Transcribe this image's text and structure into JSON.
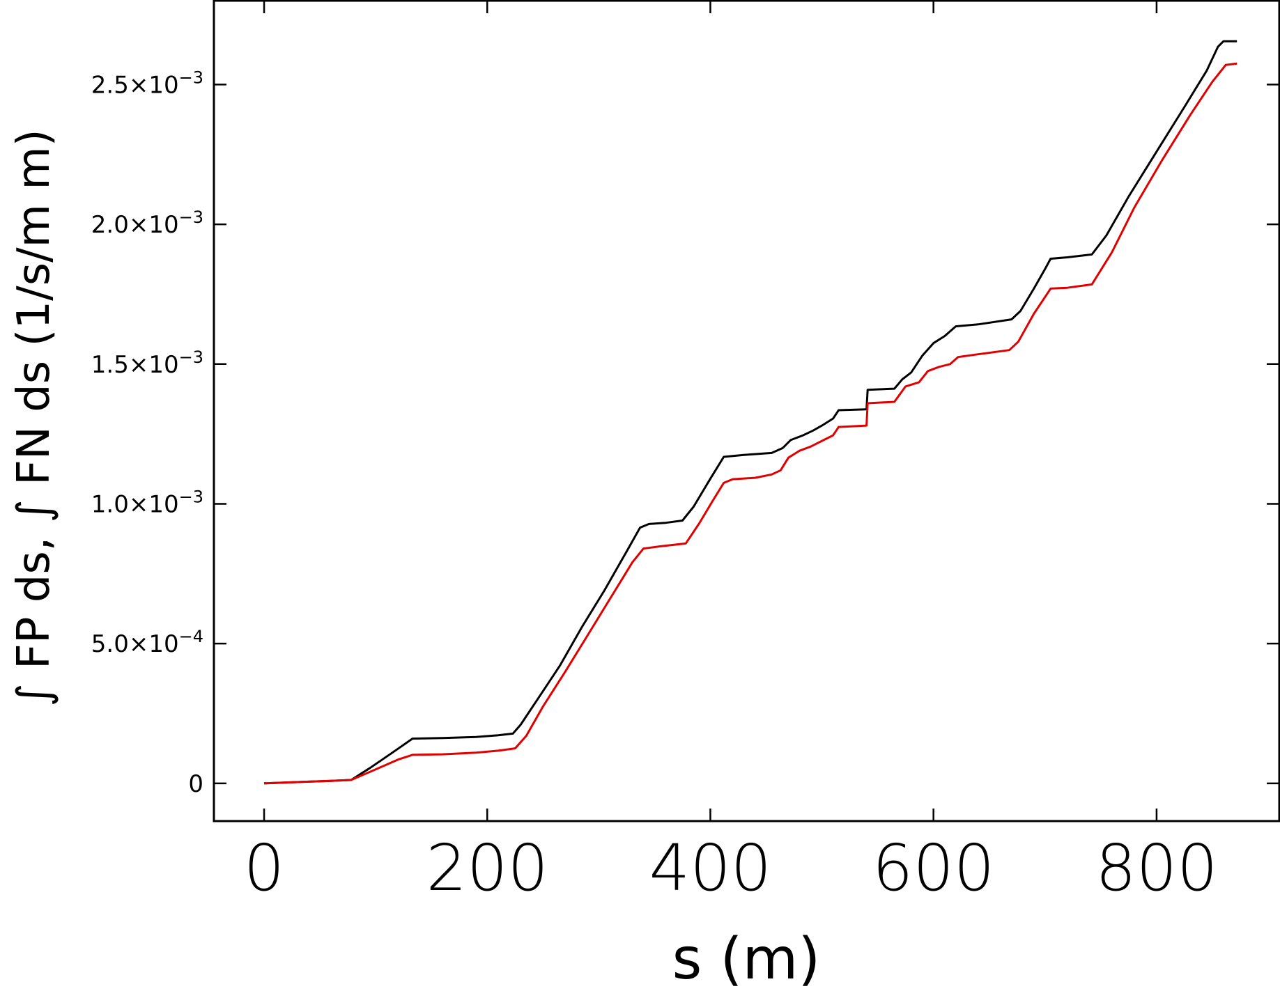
{
  "chart_data": {
    "type": "line",
    "xlabel": "s (m)",
    "ylabel": "∫ FP ds, ∫ FN ds (1/s/m m)",
    "xlim": [
      -45,
      910
    ],
    "ylim": [
      -0.000135,
      0.0028
    ],
    "x_ticks": [
      {
        "value": 0,
        "label": "0"
      },
      {
        "value": 200,
        "label": "200"
      },
      {
        "value": 400,
        "label": "400"
      },
      {
        "value": 600,
        "label": "600"
      },
      {
        "value": 800,
        "label": "800"
      }
    ],
    "y_ticks": [
      {
        "value": 0,
        "mantissa": "0",
        "exponent": ""
      },
      {
        "value": 0.0005,
        "mantissa": "5.0",
        "exponent": "−4"
      },
      {
        "value": 0.001,
        "mantissa": "1.0",
        "exponent": "−3"
      },
      {
        "value": 0.0015,
        "mantissa": "1.5",
        "exponent": "−3"
      },
      {
        "value": 0.002,
        "mantissa": "2.0",
        "exponent": "−3"
      },
      {
        "value": 0.0025,
        "mantissa": "2.5",
        "exponent": "−3"
      }
    ],
    "grid": false,
    "series": [
      {
        "color": "#000000",
        "points": [
          [
            0,
            0.0
          ],
          [
            20,
            3e-06
          ],
          [
            40,
            6e-06
          ],
          [
            60,
            9e-06
          ],
          [
            78,
            1.2e-05
          ],
          [
            95,
            5.5e-05
          ],
          [
            115,
            0.00011
          ],
          [
            133,
            0.00016
          ],
          [
            160,
            0.000162
          ],
          [
            190,
            0.000166
          ],
          [
            210,
            0.000172
          ],
          [
            223,
            0.000178
          ],
          [
            230,
            0.00021
          ],
          [
            245,
            0.0003
          ],
          [
            265,
            0.00042
          ],
          [
            285,
            0.00056
          ],
          [
            305,
            0.00069
          ],
          [
            325,
            0.00083
          ],
          [
            337,
            0.000915
          ],
          [
            345,
            0.000928
          ],
          [
            360,
            0.000932
          ],
          [
            375,
            0.00094
          ],
          [
            385,
            0.00099
          ],
          [
            400,
            0.00109
          ],
          [
            412,
            0.001168
          ],
          [
            430,
            0.001175
          ],
          [
            455,
            0.001182
          ],
          [
            465,
            0.0012
          ],
          [
            472,
            0.001228
          ],
          [
            483,
            0.001245
          ],
          [
            492,
            0.001262
          ],
          [
            500,
            0.00128
          ],
          [
            510,
            0.001305
          ],
          [
            515,
            0.001335
          ],
          [
            540,
            0.001338
          ],
          [
            541,
            0.001408
          ],
          [
            565,
            0.001412
          ],
          [
            572,
            0.001445
          ],
          [
            580,
            0.00147
          ],
          [
            590,
            0.00153
          ],
          [
            600,
            0.001575
          ],
          [
            610,
            0.0016
          ],
          [
            620,
            0.001635
          ],
          [
            640,
            0.001642
          ],
          [
            670,
            0.00166
          ],
          [
            678,
            0.00169
          ],
          [
            690,
            0.00177
          ],
          [
            700,
            0.00184
          ],
          [
            705,
            0.001877
          ],
          [
            720,
            0.001882
          ],
          [
            742,
            0.001892
          ],
          [
            755,
            0.00196
          ],
          [
            775,
            0.0021
          ],
          [
            800,
            0.00226
          ],
          [
            825,
            0.00242
          ],
          [
            845,
            0.00255
          ],
          [
            855,
            0.002635
          ],
          [
            860,
            0.002655
          ],
          [
            872,
            0.002655
          ]
        ]
      },
      {
        "color": "#e00000",
        "points": [
          [
            0,
            0.0
          ],
          [
            20,
            3e-06
          ],
          [
            40,
            6e-06
          ],
          [
            60,
            9e-06
          ],
          [
            78,
            1.2e-05
          ],
          [
            100,
            5e-05
          ],
          [
            120,
            8.5e-05
          ],
          [
            133,
            0.000102
          ],
          [
            160,
            0.000104
          ],
          [
            190,
            0.00011
          ],
          [
            210,
            0.000117
          ],
          [
            225,
            0.000125
          ],
          [
            235,
            0.00017
          ],
          [
            250,
            0.000275
          ],
          [
            270,
            0.0004
          ],
          [
            290,
            0.00053
          ],
          [
            310,
            0.00066
          ],
          [
            330,
            0.00079
          ],
          [
            340,
            0.00084
          ],
          [
            355,
            0.000848
          ],
          [
            378,
            0.000858
          ],
          [
            390,
            0.00093
          ],
          [
            402,
            0.00101
          ],
          [
            412,
            0.001075
          ],
          [
            420,
            0.001088
          ],
          [
            440,
            0.001093
          ],
          [
            455,
            0.001105
          ],
          [
            463,
            0.00112
          ],
          [
            470,
            0.001165
          ],
          [
            480,
            0.00119
          ],
          [
            490,
            0.001205
          ],
          [
            500,
            0.001225
          ],
          [
            510,
            0.001245
          ],
          [
            515,
            0.001275
          ],
          [
            540,
            0.00128
          ],
          [
            541,
            0.00136
          ],
          [
            565,
            0.001365
          ],
          [
            575,
            0.00142
          ],
          [
            587,
            0.001435
          ],
          [
            595,
            0.001475
          ],
          [
            605,
            0.00149
          ],
          [
            615,
            0.0015
          ],
          [
            622,
            0.001525
          ],
          [
            640,
            0.001535
          ],
          [
            668,
            0.00155
          ],
          [
            676,
            0.00158
          ],
          [
            690,
            0.00168
          ],
          [
            705,
            0.00177
          ],
          [
            720,
            0.001773
          ],
          [
            742,
            0.001785
          ],
          [
            760,
            0.0019
          ],
          [
            780,
            0.00206
          ],
          [
            805,
            0.00223
          ],
          [
            830,
            0.00239
          ],
          [
            850,
            0.00251
          ],
          [
            862,
            0.00257
          ],
          [
            872,
            0.002575
          ]
        ]
      }
    ]
  }
}
